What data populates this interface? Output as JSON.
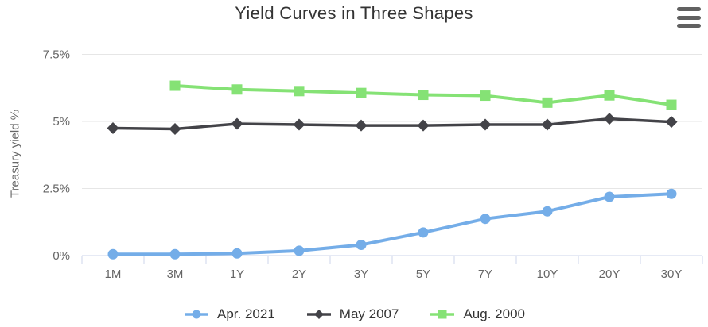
{
  "header": {
    "menu_icon": "hamburger-icon"
  },
  "colors": {
    "title_text": "#333333",
    "axis_label_text": "#666666",
    "axis_line": "#ccd6eb",
    "grid_line": "#e6e6e6",
    "series_blue": "#74ade8",
    "series_black": "#434348",
    "series_green": "#85e275"
  },
  "chart_data": {
    "type": "line",
    "title": "Yield Curves in Three Shapes",
    "xlabel": "",
    "ylabel": "Treasury yield %",
    "categories": [
      "1M",
      "3M",
      "1Y",
      "2Y",
      "3Y",
      "5Y",
      "7Y",
      "10Y",
      "20Y",
      "30Y"
    ],
    "ylim": [
      0,
      7.5
    ],
    "yticks": [
      {
        "value": 0,
        "label": "0%"
      },
      {
        "value": 2.5,
        "label": "2.5%"
      },
      {
        "value": 5,
        "label": "5%"
      },
      {
        "value": 7.5,
        "label": "7.5%"
      }
    ],
    "grid": true,
    "legend_position": "bottom",
    "series": [
      {
        "name": "Apr. 2021",
        "color": "#74ade8",
        "marker": "circle",
        "values": [
          0.05,
          0.05,
          0.08,
          0.18,
          0.4,
          0.86,
          1.37,
          1.65,
          2.19,
          2.3
        ]
      },
      {
        "name": "May 2007",
        "color": "#434348",
        "marker": "diamond",
        "values": [
          4.75,
          4.72,
          4.91,
          4.88,
          4.85,
          4.85,
          4.88,
          4.88,
          5.1,
          4.98
        ]
      },
      {
        "name": "Aug. 2000",
        "color": "#85e275",
        "marker": "square",
        "values": [
          null,
          6.33,
          6.19,
          6.13,
          6.06,
          5.99,
          5.96,
          5.7,
          5.97,
          5.62
        ]
      }
    ]
  }
}
